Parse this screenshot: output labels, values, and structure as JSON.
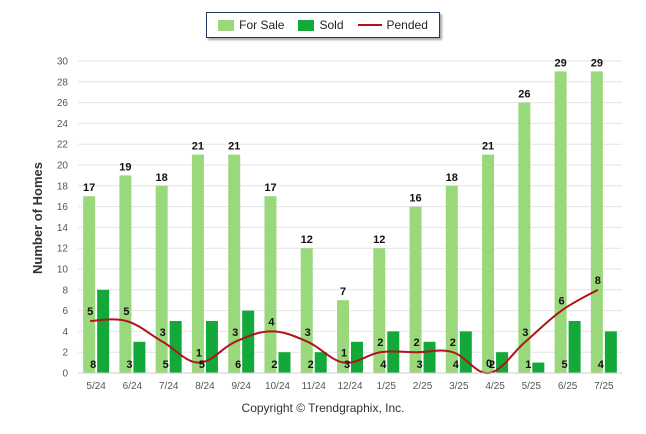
{
  "legend": {
    "for_sale": "For Sale",
    "sold": "Sold",
    "pended": "Pended"
  },
  "copyright": "Copyright © Trendgraphix, Inc.",
  "colors": {
    "for_sale": "#9ad87c",
    "sold": "#12a83a",
    "pended": "#b0141c",
    "grid": "#e4e4e4",
    "axis_text": "#555555"
  },
  "chart_data": {
    "type": "bar",
    "ylabel": "Number of Homes",
    "xlabel": "",
    "ylim": [
      0,
      30
    ],
    "yticks": [
      0,
      2,
      4,
      6,
      8,
      10,
      12,
      14,
      16,
      18,
      20,
      22,
      24,
      26,
      28,
      30
    ],
    "grid": true,
    "legend_position": "top-center",
    "categories": [
      "5/24",
      "6/24",
      "7/24",
      "8/24",
      "9/24",
      "10/24",
      "11/24",
      "12/24",
      "1/25",
      "2/25",
      "3/25",
      "4/25",
      "5/25",
      "6/25",
      "7/25"
    ],
    "series": [
      {
        "name": "For Sale",
        "type": "bar",
        "values": [
          17,
          19,
          18,
          21,
          21,
          17,
          12,
          7,
          12,
          16,
          18,
          21,
          26,
          29,
          29
        ]
      },
      {
        "name": "Sold",
        "type": "bar",
        "values": [
          8,
          3,
          5,
          5,
          6,
          2,
          2,
          3,
          4,
          3,
          4,
          2,
          1,
          5,
          4
        ]
      },
      {
        "name": "Pended",
        "type": "line",
        "values": [
          5,
          5,
          3,
          1,
          3,
          4,
          3,
          1,
          2,
          2,
          2,
          0,
          3,
          6,
          8
        ]
      }
    ]
  }
}
